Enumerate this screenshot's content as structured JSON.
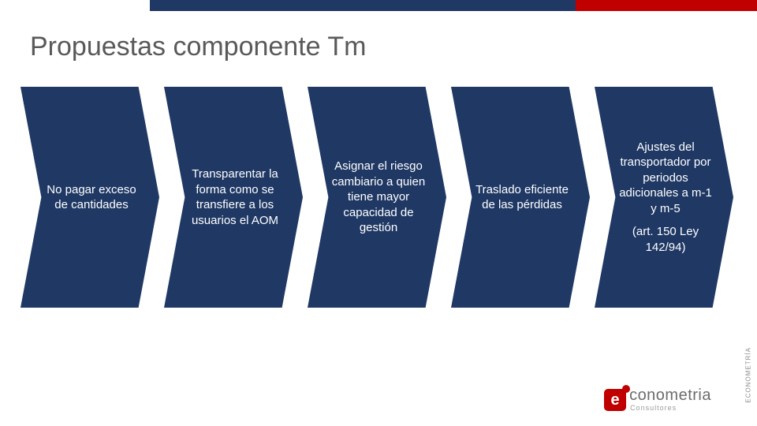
{
  "topbar": {
    "navy_color": "#1f3864",
    "red_color": "#c00000"
  },
  "title": "Propuestas componente Tm",
  "chevrons": {
    "bg_color": "#1f3864",
    "text_color": "#ffffff",
    "items": [
      {
        "text": "No pagar exceso de cantidades"
      },
      {
        "text": "Transparentar la forma como se transfiere a los usuarios el AOM"
      },
      {
        "text": "Asignar el riesgo cambiario a quien tiene mayor capacidad de gestión"
      },
      {
        "text": "Traslado eficiente de las pérdidas"
      },
      {
        "text": "Ajustes del transportador por periodos adicionales a m-1 y m-5",
        "sub": "(art. 150 Ley 142/94)"
      }
    ]
  },
  "logo": {
    "mark_letter": "e",
    "word": "conometria",
    "sub": "Consultores"
  },
  "side_stamp": "ECONOMETRÍA"
}
